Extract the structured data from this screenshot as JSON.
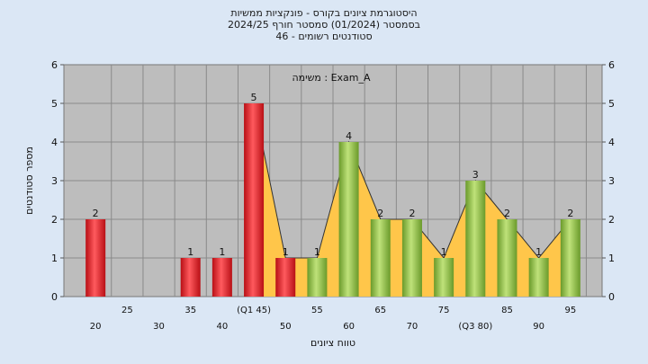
{
  "header": {
    "title": "היסטוגרמת ציונים בקורס - פונקציות ממשיות",
    "subtitle": "בסמסטר  (01/2024)  סמסטר חורף 2024/25",
    "students": "סטודנטים רשומים - 46"
  },
  "chart_data": {
    "type": "bar",
    "annotation": "משימה : Exam_A",
    "xlabel": "טווח ציונים",
    "ylabel": "מספר סטודנטים",
    "ylim": [
      0,
      6
    ],
    "yticks": [
      0,
      1,
      2,
      3,
      4,
      5,
      6
    ],
    "grid": true,
    "categories": [
      "20",
      "25",
      "30",
      "35",
      "40",
      "(Q1 45)",
      "50",
      "55",
      "60",
      "65",
      "70",
      "75",
      "(Q3 80)",
      "85",
      "90",
      "95"
    ],
    "values": [
      2,
      0,
      0,
      1,
      1,
      5,
      1,
      1,
      4,
      2,
      2,
      1,
      3,
      2,
      1,
      2
    ],
    "bar_colors": [
      "red",
      "none",
      "none",
      "red",
      "red",
      "red",
      "red",
      "green",
      "green",
      "green",
      "green",
      "green",
      "green",
      "green",
      "green",
      "green"
    ],
    "colors": {
      "red": "#e8262b",
      "green": "#8fc043",
      "area": "#ffc64a",
      "plot_bg": "#bdbdbd",
      "page_bg": "#dbe7f5"
    }
  }
}
